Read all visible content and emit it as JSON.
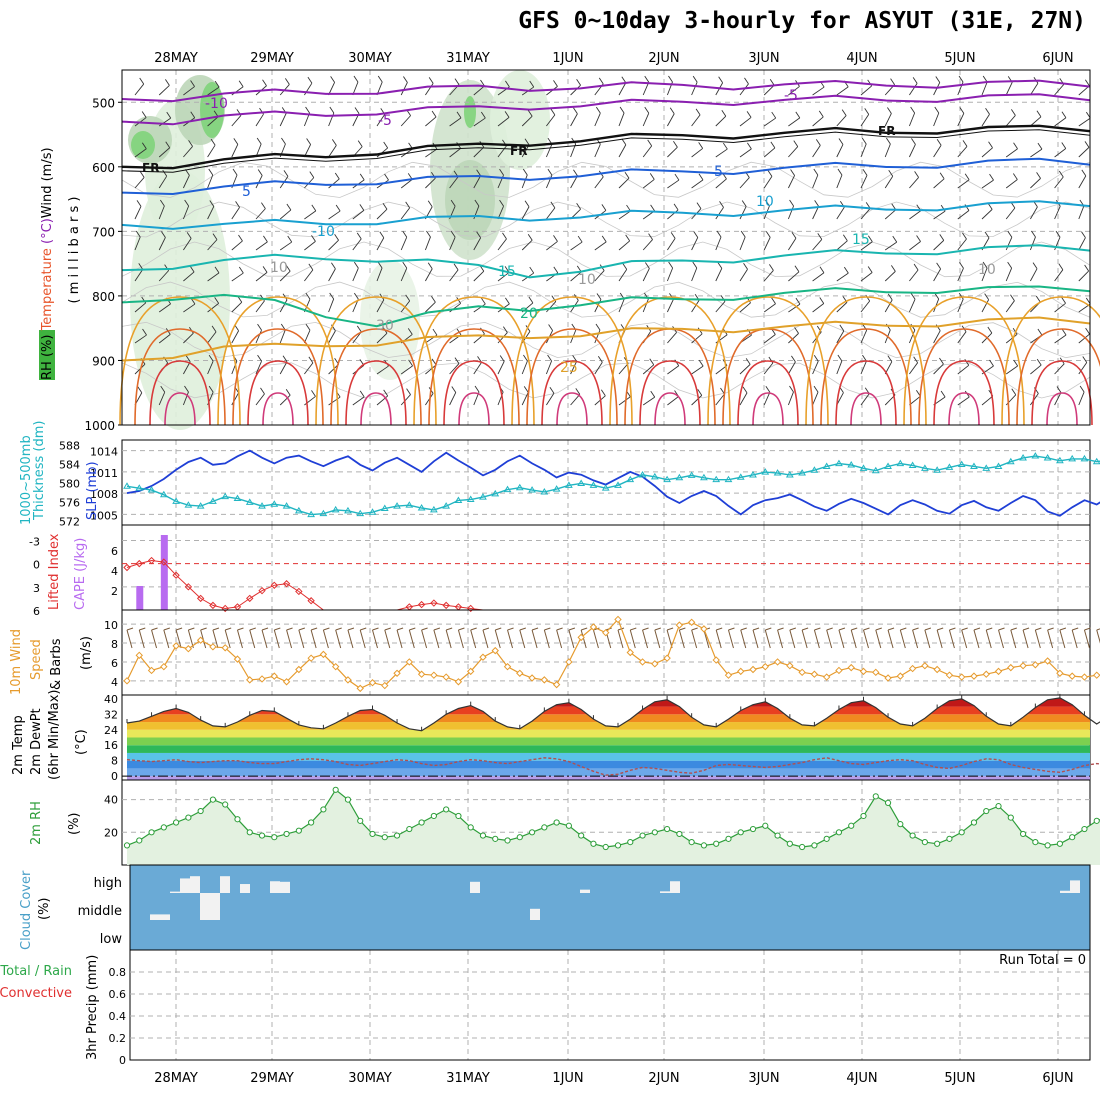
{
  "title": "GFS 0~10day 3-hourly for ASYUT (31E, 27N)",
  "colors": {
    "temperature": "#e8542a",
    "wind_label": "#000000",
    "rh_label": "#2e9e3a",
    "slp": "#1f3fd6",
    "thickness": "#21b5c2",
    "lifted_index": "#e03030",
    "cape": "#b86bf0",
    "wind10": "#e69b2e",
    "rh2m": "#2e9e3a",
    "cloud_bg": "#6aaad6",
    "cloud_fill": "#f2f2f2",
    "precip_total": "#2ea84a",
    "precip_conv": "#e03030"
  },
  "chart_data": [
    {
      "type": "contour",
      "panel": "upper-air",
      "dates": [
        "28MAY",
        "29MAY",
        "30MAY",
        "31MAY",
        "1JUN",
        "2JUN",
        "3JUN",
        "4JUN",
        "5JUN",
        "6JUN"
      ],
      "ylabel_parts": [
        "RH (%)",
        "Temperature",
        "(°C)",
        "Wind",
        "(m/s)"
      ],
      "ylabel_units": "( m i l l i b a r s )",
      "y_ticks": [
        "500",
        "600",
        "700",
        "800",
        "900",
        "1000"
      ],
      "ylim": [
        1000,
        450
      ],
      "temperature_contours": [
        {
          "label": "-10",
          "pressure": [
            495,
            492,
            488,
            486,
            484,
            482,
            480,
            478,
            477,
            476,
            475,
            474,
            474,
            473,
            473,
            472,
            472,
            472,
            471,
            471
          ]
        },
        {
          "label": "-5",
          "pressure": [
            530,
            528,
            522,
            520,
            518,
            514,
            512,
            510,
            506,
            504,
            502,
            500,
            498,
            497,
            496,
            495,
            494,
            493,
            492,
            492
          ]
        },
        {
          "label": "FR",
          "pressure": [
            600,
            596,
            590,
            586,
            582,
            576,
            572,
            568,
            562,
            558,
            555,
            552,
            550,
            548,
            546,
            545,
            543,
            542,
            541,
            540
          ]
        },
        {
          "label": "5",
          "pressure": [
            640,
            636,
            632,
            628,
            625,
            622,
            620,
            618,
            615,
            612,
            610,
            608,
            605,
            602,
            600,
            598,
            596,
            594,
            592,
            592
          ]
        },
        {
          "label": "10",
          "pressure": [
            690,
            690,
            690,
            688,
            686,
            684,
            682,
            680,
            678,
            676,
            674,
            672,
            670,
            668,
            666,
            664,
            662,
            660,
            658,
            656
          ]
        },
        {
          "label": "15",
          "pressure": [
            760,
            752,
            746,
            742,
            740,
            742,
            748,
            756,
            766,
            760,
            752,
            746,
            742,
            738,
            735,
            732,
            730,
            728,
            726,
            725
          ]
        },
        {
          "label": "20",
          "pressure": [
            810,
            800,
            800,
            812,
            830,
            842,
            830,
            820,
            818,
            812,
            808,
            806,
            800,
            796,
            794,
            792,
            790,
            790,
            790,
            788
          ]
        },
        {
          "label": "25",
          "pressure": [
            900,
            890,
            880,
            880,
            875,
            872,
            868,
            865,
            860,
            860,
            856,
            852,
            850,
            848,
            846,
            844,
            842,
            840,
            838,
            838
          ]
        }
      ],
      "fr_labels": [
        "FR",
        "FR",
        "FR"
      ],
      "contour_labels": [
        "-10",
        "-5",
        "5",
        "-5",
        "5",
        "10",
        "-10",
        "10",
        "15",
        "15",
        "20",
        "25",
        "10",
        "10",
        "30",
        "10"
      ]
    },
    {
      "type": "line",
      "panel": "slp-thickness",
      "ylabel_left": "Thickness (dm)",
      "ylabel_left_2": "1000~500mb",
      "ylabel_right": "SLP (mb)",
      "y_ticks_left": [
        "588",
        "584",
        "580",
        "576",
        "572"
      ],
      "y_ticks_right": [
        "1014",
        "1011",
        "1008",
        "1005"
      ],
      "series": [
        {
          "name": "SLP",
          "axis": "right",
          "values": [
            1008.0,
            1008.3,
            1009.0,
            1010.0,
            1011.3,
            1012.4,
            1013.0,
            1012.0,
            1012.2,
            1013.2,
            1014.0,
            1013.0,
            1012.2,
            1013.0,
            1013.3,
            1012.5,
            1011.8,
            1012.6,
            1013.2,
            1012.0,
            1011.2,
            1012.3,
            1013.0,
            1012.0,
            1011.0,
            1012.5,
            1013.7,
            1012.6,
            1011.6,
            1010.5,
            1011.3,
            1012.5,
            1013.3,
            1012.2,
            1011.3,
            1010.2,
            1010.9,
            1010.6,
            1009.8,
            1009.2,
            1010.1,
            1011.0,
            1010.3,
            1009.0,
            1007.5,
            1006.6,
            1007.6,
            1008.3,
            1007.6,
            1006.2,
            1005.0,
            1006.3,
            1007.0,
            1007.3,
            1007.8,
            1007.0,
            1006.1,
            1005.5,
            1006.5,
            1007.2,
            1006.6,
            1005.8,
            1005.0,
            1006.3,
            1007.0,
            1006.4,
            1005.5,
            1005.1,
            1006.3,
            1006.9,
            1006.0,
            1005.5,
            1006.6,
            1007.6,
            1007.0,
            1005.4,
            1004.8,
            1006.0,
            1007.0,
            1006.4,
            1007.5
          ]
        },
        {
          "name": "Thickness",
          "axis": "left",
          "values": [
            579.2,
            578.8,
            578.4,
            577.4,
            576.0,
            575.2,
            575.0,
            576.0,
            577.0,
            576.6,
            575.8,
            575.0,
            575.4,
            575.0,
            574.0,
            573.2,
            573.4,
            574.2,
            574.0,
            573.4,
            573.7,
            574.5,
            575.0,
            575.2,
            574.6,
            574.2,
            575.0,
            576.2,
            576.4,
            576.9,
            577.6,
            578.5,
            578.9,
            578.4,
            578.0,
            578.6,
            579.4,
            579.8,
            579.4,
            578.8,
            579.4,
            580.6,
            581.6,
            581.2,
            580.6,
            581.0,
            581.5,
            581.0,
            580.6,
            580.6,
            581.1,
            581.6,
            582.2,
            582.0,
            581.6,
            582.0,
            582.6,
            583.4,
            584.0,
            583.7,
            583.0,
            582.5,
            583.4,
            584.0,
            583.6,
            583.0,
            582.6,
            583.2,
            583.8,
            583.4,
            583.0,
            583.4,
            584.4,
            585.2,
            585.6,
            585.2,
            584.6,
            585.0,
            585.0,
            584.4,
            584.8
          ]
        }
      ]
    },
    {
      "type": "bar-line",
      "panel": "instability",
      "ylabel_left": "Lifted Index",
      "ylabel_right": "CAPE (J/kg)",
      "y_ticks_left": [
        "-3",
        "0",
        "3",
        "6"
      ],
      "y_ticks_right": [
        "6",
        "4",
        "2"
      ],
      "cape_bars": [
        {
          "step": 1,
          "value": 2.4
        },
        {
          "step": 3,
          "value": 7.5
        }
      ],
      "lifted_index_values": [
        0.5,
        0.0,
        -0.4,
        -0.2,
        1.5,
        3.0,
        4.5,
        5.4,
        5.8,
        5.6,
        4.5,
        3.5,
        2.8,
        2.6,
        3.6,
        4.8,
        6.0,
        6.0,
        6.0,
        6.0,
        6.0,
        6.0,
        6.0,
        5.6,
        5.3,
        5.1,
        5.4,
        5.6,
        5.8,
        6.0
      ]
    },
    {
      "type": "line",
      "panel": "wind10m",
      "ylabel": "10m Wind Speed & Barbs (m/s)",
      "ylabel_parts": [
        "10m Wind",
        "Speed",
        "& Barbs",
        "(m/s)"
      ],
      "y_ticks": [
        "10",
        "8",
        "6",
        "4"
      ],
      "ylim": [
        3,
        11
      ],
      "values": [
        4.0,
        6.7,
        5.1,
        5.5,
        7.7,
        7.4,
        8.3,
        7.6,
        7.5,
        6.3,
        4.1,
        4.2,
        4.5,
        3.9,
        5.2,
        6.4,
        6.8,
        5.5,
        4.1,
        3.2,
        3.8,
        3.5,
        4.8,
        6.0,
        4.7,
        4.6,
        4.4,
        3.9,
        5.0,
        6.5,
        7.2,
        5.5,
        4.8,
        4.3,
        4.1,
        3.6,
        6.0,
        8.6,
        9.7,
        9.1,
        10.5,
        7.0,
        6.0,
        5.8,
        6.4,
        9.9,
        10.2,
        9.5,
        6.2,
        4.6,
        5.0,
        5.2,
        5.5,
        6.0,
        5.6,
        4.9,
        4.7,
        4.4,
        5.1,
        5.4,
        5.0,
        4.9,
        4.3,
        4.5,
        5.3,
        5.6,
        5.2,
        4.6,
        4.4,
        4.5,
        4.7,
        5.0,
        5.4,
        5.6,
        5.7,
        6.1,
        4.8,
        4.5,
        4.4,
        4.6,
        4.7
      ]
    },
    {
      "type": "area",
      "panel": "temp2m",
      "ylabel_parts": [
        "2m Temp",
        "2m DewPt",
        "(6hr Min/Max)",
        "(°C)"
      ],
      "y_ticks": [
        "40",
        "32",
        "24",
        "16",
        "8",
        "0"
      ],
      "ylim": [
        -2,
        42
      ],
      "temperature": [
        27.5,
        28.5,
        31.0,
        33.5,
        35.0,
        33.0,
        29.0,
        26.0,
        25.5,
        28.0,
        31.5,
        34.0,
        33.5,
        30.0,
        26.5,
        25.0,
        24.5,
        27.5,
        31.0,
        34.0,
        34.5,
        31.5,
        27.5,
        24.5,
        23.5,
        27.5,
        32.0,
        35.0,
        36.5,
        33.5,
        28.5,
        25.5,
        24.5,
        28.5,
        33.5,
        37.0,
        38.0,
        34.5,
        29.5,
        26.0,
        25.5,
        29.5,
        34.5,
        38.5,
        39.5,
        36.0,
        30.5,
        26.5,
        25.5,
        29.5,
        34.0,
        37.0,
        38.5,
        35.0,
        30.0,
        26.5,
        26.0,
        30.0,
        34.5,
        38.0,
        39.0,
        35.5,
        30.5,
        27.0,
        26.0,
        30.0,
        35.0,
        39.0,
        40.0,
        36.5,
        31.0,
        27.0,
        26.0,
        30.5,
        35.5,
        39.5,
        40.5,
        37.0,
        31.5,
        27.0,
        31.0
      ],
      "dewpoint": [
        8.5,
        8.0,
        7.5,
        8.0,
        8.5,
        7.5,
        7.0,
        7.5,
        8.0,
        8.0,
        7.0,
        6.5,
        6.5,
        7.5,
        8.5,
        9.0,
        8.5,
        7.5,
        6.0,
        5.5,
        6.5,
        7.5,
        8.5,
        8.0,
        6.5,
        5.5,
        6.0,
        7.5,
        8.5,
        8.0,
        7.0,
        6.5,
        7.5,
        8.5,
        9.5,
        9.0,
        7.5,
        5.0,
        2.5,
        0.5,
        1.0,
        3.0,
        4.5,
        4.0,
        3.0,
        2.0,
        1.5,
        3.0,
        5.5,
        6.0,
        5.5,
        5.0,
        4.5,
        5.0,
        6.0,
        7.0,
        8.5,
        9.5,
        8.0,
        6.5,
        6.0,
        7.0,
        8.0,
        8.5,
        8.0,
        6.0,
        4.5,
        4.0,
        5.5,
        7.5,
        9.0,
        8.5,
        6.0,
        4.5,
        3.5,
        2.5,
        2.0,
        3.5,
        5.5,
        6.5,
        6.0
      ]
    },
    {
      "type": "area",
      "panel": "rh2m",
      "ylabel": "2m RH",
      "yunits": "(%)",
      "y_ticks": [
        "40",
        "20"
      ],
      "ylim": [
        0,
        52
      ],
      "values": [
        12,
        15,
        20,
        23,
        26,
        29,
        33,
        40,
        37,
        28,
        20,
        18,
        17,
        19,
        21,
        26,
        34,
        46,
        40,
        27,
        19,
        17,
        18,
        22,
        26,
        30,
        34,
        30,
        23,
        18,
        16,
        15,
        17,
        20,
        23,
        26,
        24,
        18,
        13,
        11,
        12,
        14,
        18,
        20,
        22,
        19,
        14,
        12,
        13,
        16,
        20,
        22,
        24,
        18,
        13,
        11,
        12,
        16,
        20,
        24,
        30,
        42,
        38,
        25,
        18,
        14,
        13,
        16,
        20,
        26,
        33,
        36,
        29,
        19,
        14,
        12,
        13,
        17,
        22,
        27,
        30
      ]
    },
    {
      "type": "bar",
      "panel": "cloud",
      "ylabel": "Cloud Cover",
      "yunits": "(%)",
      "y_ticks": [
        "high",
        "middle",
        "low"
      ],
      "high": [
        0,
        0,
        0,
        0,
        5,
        52,
        60,
        0,
        0,
        60,
        0,
        32,
        0,
        0,
        42,
        40,
        0,
        0,
        0,
        0,
        0,
        0,
        0,
        0,
        0,
        0,
        0,
        0,
        0,
        0,
        0,
        0,
        0,
        0,
        40,
        0,
        0,
        0,
        0,
        0,
        0,
        0,
        0,
        0,
        0,
        12,
        0,
        0,
        0,
        0,
        0,
        0,
        0,
        6,
        42,
        0,
        0,
        0,
        0,
        0,
        0,
        0,
        0,
        0,
        0,
        0,
        0,
        0,
        0,
        0,
        0,
        0,
        0,
        0,
        0,
        0,
        0,
        0,
        0,
        0,
        0,
        0,
        0,
        0,
        0,
        0,
        0,
        0,
        0,
        0,
        0,
        0,
        0,
        8,
        45
      ],
      "middle": [
        0,
        0,
        20,
        20,
        0,
        0,
        0,
        0,
        0,
        0,
        0,
        0,
        0,
        0,
        0,
        0,
        0,
        0,
        0,
        0,
        0,
        0,
        0,
        0,
        0,
        0,
        0,
        0,
        0,
        0,
        0,
        0,
        0,
        0,
        0,
        0,
        0,
        0,
        0,
        0,
        40,
        0,
        0,
        0,
        0,
        0,
        0,
        0,
        0,
        0,
        0,
        0,
        0,
        0,
        0,
        0,
        0,
        0,
        0,
        0,
        0,
        0,
        0,
        0,
        0,
        0,
        0,
        0,
        0,
        0,
        0,
        0,
        0,
        0,
        0,
        0,
        0,
        0,
        0,
        0,
        0,
        0,
        0,
        0,
        0,
        0,
        0,
        0,
        0,
        0,
        0,
        0,
        0,
        0,
        0
      ],
      "mid_wide": [
        {
          "from": 7,
          "to": 9,
          "value": 100
        }
      ]
    },
    {
      "type": "bar",
      "panel": "precip",
      "ylabel_parts": [
        "Total / Rain",
        "Convective",
        "3hr Precip (mm)"
      ],
      "y_ticks": [
        "0.8",
        "0.6",
        "0.4",
        "0.2",
        "0"
      ],
      "ylim": [
        0,
        1.0
      ],
      "run_total": "Run Total = 0",
      "values": []
    }
  ]
}
